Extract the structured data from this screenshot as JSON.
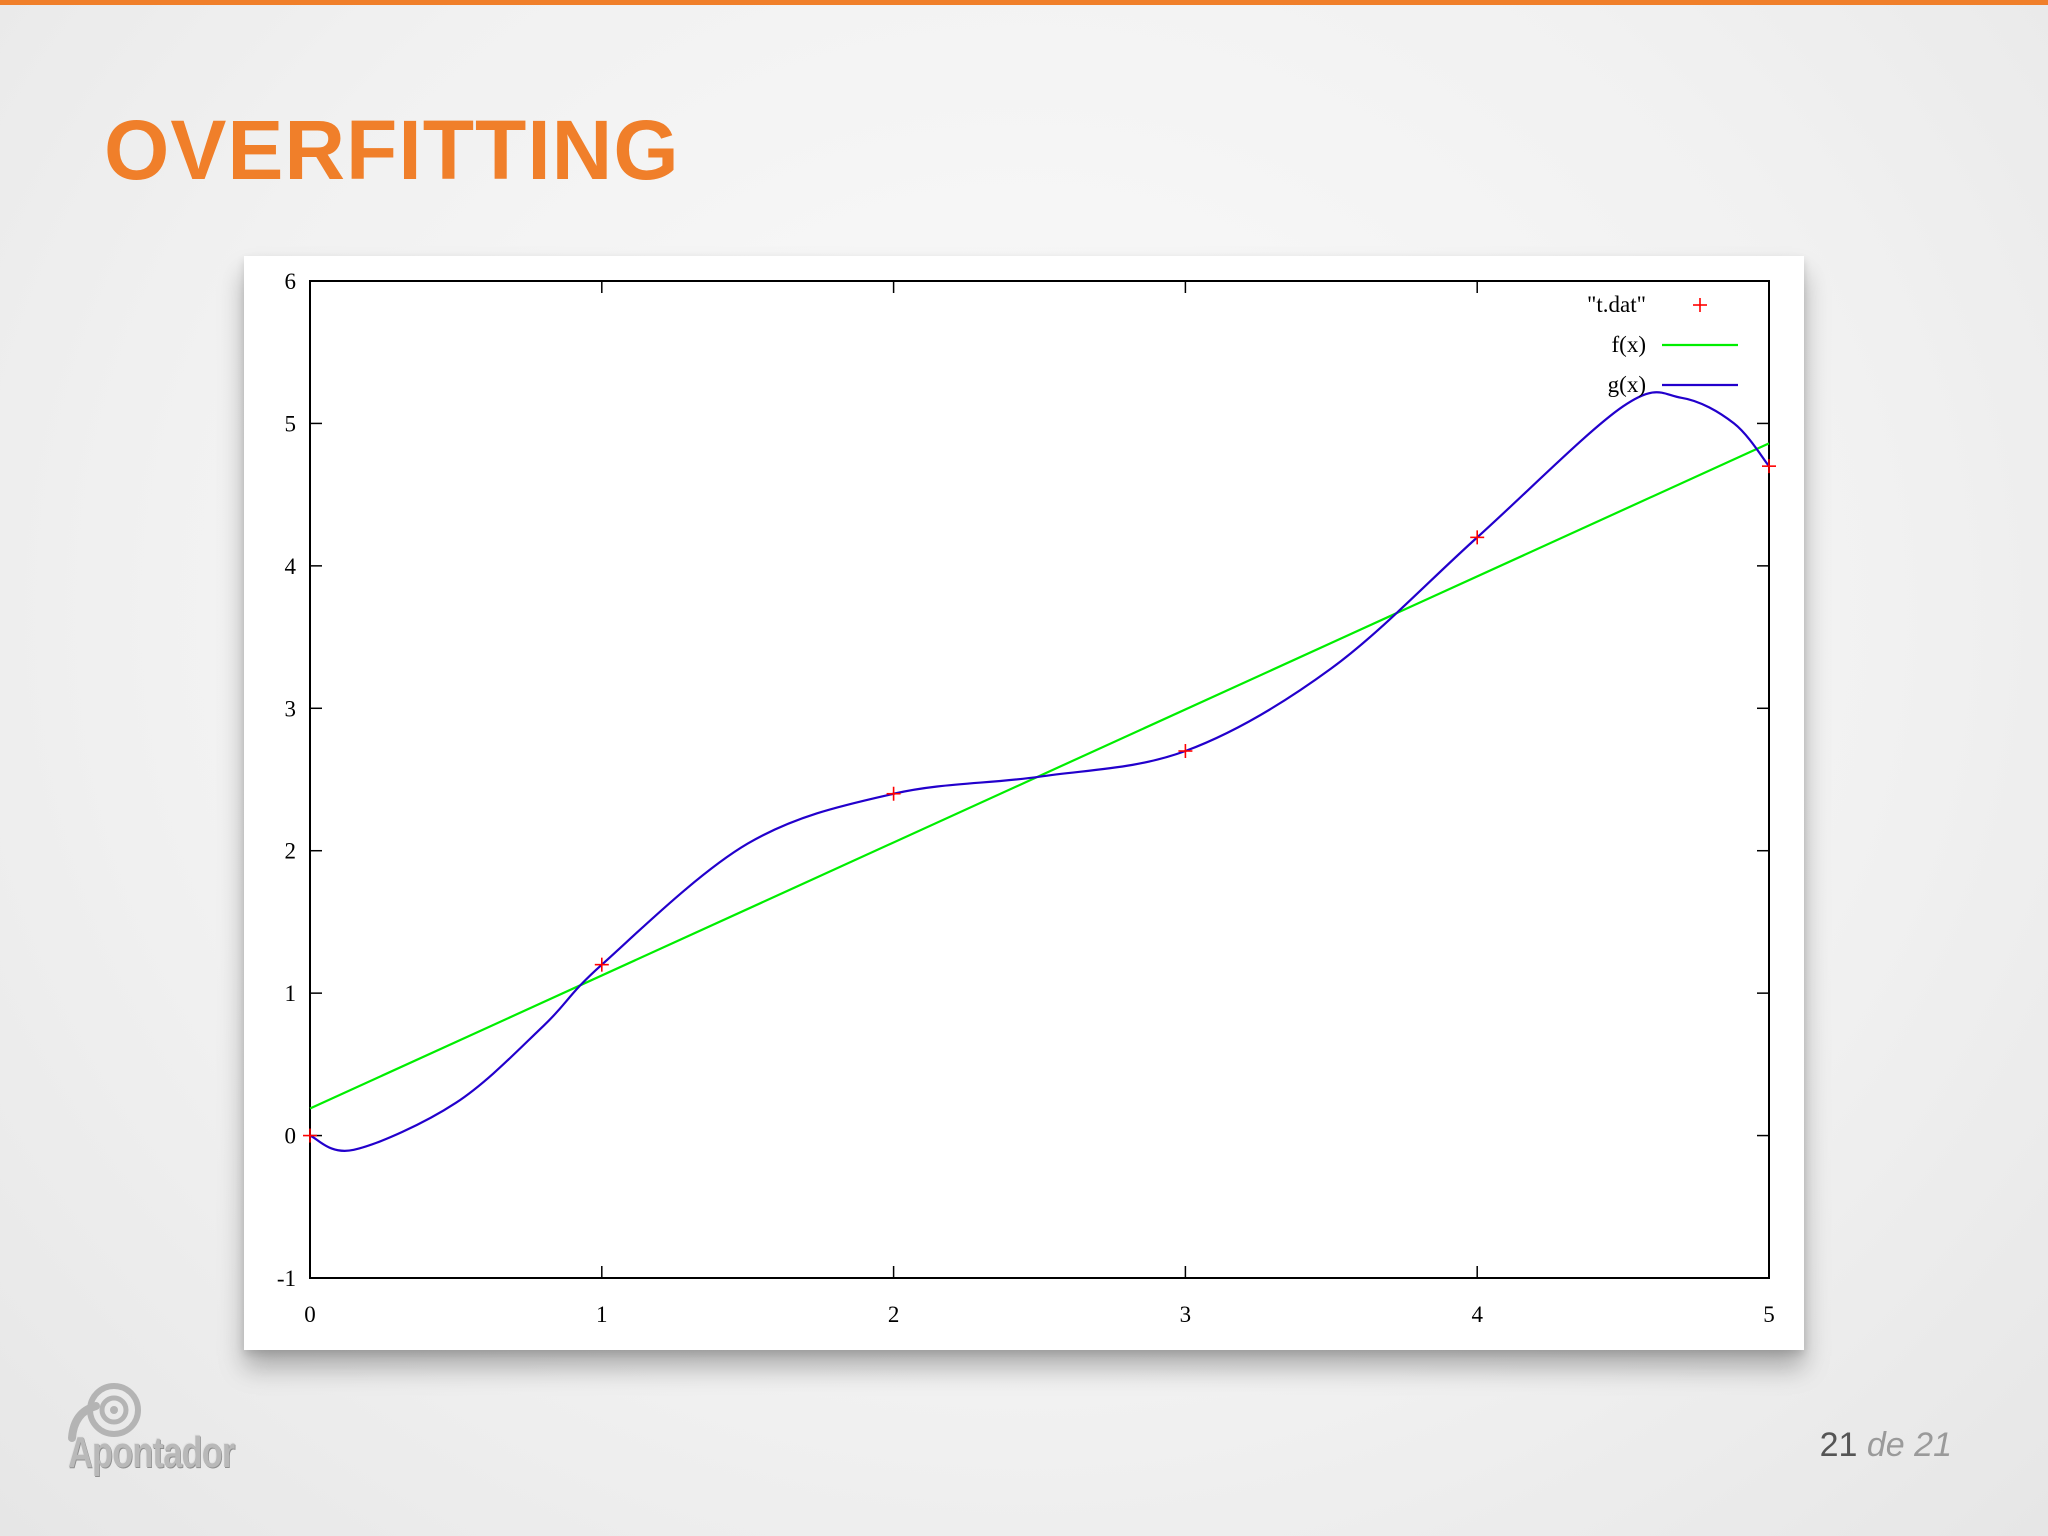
{
  "slide": {
    "title": "OVERFITTING",
    "accent_color": "#f07f2a",
    "logo_text": "Apontador",
    "page": {
      "current": "21",
      "separator": "de",
      "total": "21"
    }
  },
  "chart_data": {
    "type": "line",
    "title": "",
    "xlabel": "",
    "ylabel": "",
    "xlim": [
      0,
      5
    ],
    "ylim": [
      -1,
      6
    ],
    "x_ticks": [
      "0",
      "1",
      "2",
      "3",
      "4",
      "5"
    ],
    "y_ticks": [
      "-1",
      "0",
      "1",
      "2",
      "3",
      "4",
      "5",
      "6"
    ],
    "grid": false,
    "legend_position": "top-right",
    "series": [
      {
        "name": "\"t.dat\"",
        "kind": "points",
        "marker": "plus",
        "color": "#ff0000",
        "points": [
          [
            0,
            0
          ],
          [
            1,
            1.2
          ],
          [
            2,
            2.4
          ],
          [
            3,
            2.7
          ],
          [
            4,
            4.2
          ],
          [
            5,
            4.7
          ]
        ]
      },
      {
        "name": "f(x)",
        "kind": "line",
        "color": "#00ee00",
        "points": [
          [
            0,
            0.19
          ],
          [
            5,
            4.86
          ]
        ]
      },
      {
        "name": "g(x)",
        "kind": "line",
        "color": "#2200cc",
        "points": [
          [
            0,
            0.0
          ],
          [
            0.15,
            -0.1
          ],
          [
            0.5,
            0.23
          ],
          [
            0.8,
            0.77
          ],
          [
            1,
            1.2
          ],
          [
            1.5,
            2.05
          ],
          [
            2,
            2.4
          ],
          [
            2.5,
            2.52
          ],
          [
            3,
            2.7
          ],
          [
            3.5,
            3.28
          ],
          [
            4,
            4.2
          ],
          [
            4.5,
            5.12
          ],
          [
            4.7,
            5.18
          ],
          [
            4.88,
            5.0
          ],
          [
            5,
            4.7
          ]
        ]
      }
    ]
  }
}
